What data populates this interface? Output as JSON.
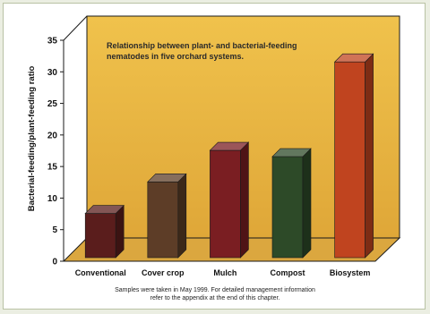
{
  "chart_data": {
    "type": "bar",
    "title": "Relationship between plant- and bacterial-feeding nematodes in five orchard systems.",
    "ylabel": "Bacterial-feeding/plant-feeding ratio",
    "xlabel": "",
    "categories": [
      "Conventional",
      "Cover crop",
      "Mulch",
      "Compost",
      "Biosystem"
    ],
    "values": [
      7,
      12,
      17,
      16,
      31
    ],
    "ylim": [
      0,
      35
    ],
    "yticks": [
      "0",
      "5",
      "10",
      "15",
      "20",
      "25",
      "30",
      "35"
    ],
    "colors": [
      "#5a1d1c",
      "#5d3d27",
      "#7a1e22",
      "#2d4a28",
      "#c0441f"
    ],
    "background_color": "#e9b33e",
    "grid": false
  },
  "caption": {
    "line1": "Samples were taken in May 1999. For detailed management information",
    "line2": "refer to the appendix at the end of this chapter."
  }
}
